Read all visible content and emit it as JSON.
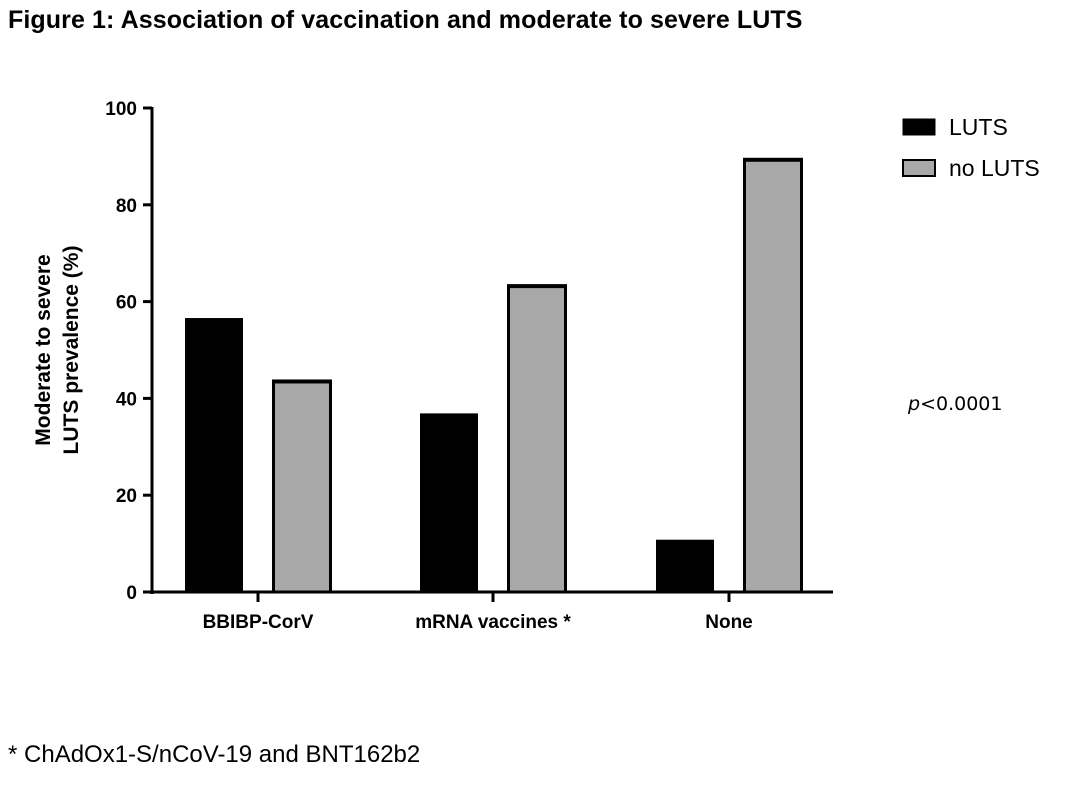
{
  "figure": {
    "title": "Figure 1: Association of vaccination and moderate to severe LUTS",
    "footnote": "* ChAdOx1-S/nCoV-19 and BNT162b2",
    "pvalue": {
      "letter": "p",
      "rest": "<0.0001"
    }
  },
  "chart_data": {
    "type": "bar",
    "title": "",
    "ylabel": [
      "Moderate to severe",
      "LUTS prevalence (%)"
    ],
    "xlabel": "",
    "ylim": [
      0,
      100
    ],
    "yticks": [
      0,
      20,
      40,
      60,
      80,
      100
    ],
    "categories": [
      "BBIBP-CorV",
      "mRNA vaccines *",
      "None"
    ],
    "series": [
      {
        "name": "LUTS",
        "color": "#000000",
        "values": [
          56.5,
          36.8,
          10.7
        ]
      },
      {
        "name": "no LUTS",
        "color": "#a8a8a8",
        "values": [
          43.5,
          63.2,
          89.3
        ]
      }
    ],
    "legend_position": "top-right",
    "grid": false
  }
}
